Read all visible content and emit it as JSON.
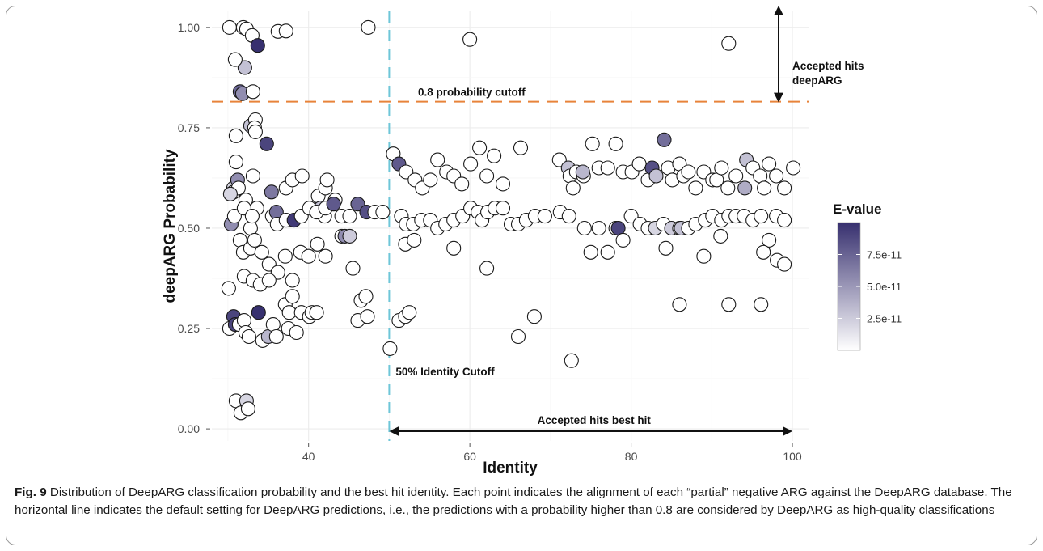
{
  "caption": {
    "label": "Fig. 9",
    "text": " Distribution of DeepARG classification probability and the best hit identity. Each point indicates the alignment of each “partial” negative ARG against the DeepARG database. The horizontal line indicates the default setting for DeepARG predictions, i.e., the predictions with a probability higher than 0.8 are considered by DeepARG as high-quality classifications"
  },
  "chart_data": {
    "type": "scatter",
    "xlabel": "Identity",
    "ylabel": "deepARG Probability",
    "xlim": [
      28,
      102
    ],
    "ylim": [
      -0.03,
      1.04
    ],
    "x_ticks": [
      40,
      60,
      80,
      100
    ],
    "y_ticks": [
      0.0,
      0.25,
      0.5,
      0.75,
      1.0
    ],
    "y_tick_labels": [
      "0.00",
      "0.25",
      "0.50",
      "0.75",
      "1.00"
    ],
    "grid": true,
    "reference_lines": [
      {
        "orientation": "horizontal",
        "value": 0.815,
        "color": "#E8833A",
        "style": "dashed",
        "label": "0.8 probability cutoff"
      },
      {
        "orientation": "vertical",
        "value": 50,
        "color": "#6EC6D8",
        "style": "dashed",
        "label": "50% Identity Cutoff"
      }
    ],
    "annotations": [
      {
        "text_lines": [
          "Accepted hits",
          "deepARG"
        ],
        "arrow": "vertical",
        "arrow_from_y": 0.815,
        "arrow_to_y": 1.04
      },
      {
        "text_lines": [
          "Accepted hits best hit"
        ],
        "arrow": "horizontal",
        "arrow_from_x": 50,
        "arrow_to_x": 100
      }
    ],
    "color_scale": {
      "title": "E-value",
      "low_color": "#ffffff",
      "high_color": "#37306F",
      "min": 0,
      "max": 1e-10,
      "ticks": [
        2.5e-11,
        5e-11,
        7.5e-11
      ],
      "tick_labels": [
        "2.5e-11",
        "5.0e-11",
        "7.5e-11"
      ]
    },
    "points": [
      [
        30.2,
        1.0,
        0
      ],
      [
        31.9,
        1.0,
        0
      ],
      [
        32.3,
        0.996,
        0
      ],
      [
        33.0,
        0.98,
        0
      ],
      [
        36.2,
        0.99,
        0
      ],
      [
        37.2,
        0.991,
        0
      ],
      [
        47.4,
        1.0,
        0
      ],
      [
        60.0,
        0.97,
        0
      ],
      [
        92.1,
        0.96,
        0
      ],
      [
        33.7,
        0.955,
        1.0
      ],
      [
        32.1,
        0.9,
        0.3
      ],
      [
        30.9,
        0.92,
        0
      ],
      [
        31.5,
        0.84,
        0.75
      ],
      [
        31.8,
        0.835,
        0.55
      ],
      [
        33.1,
        0.84,
        0
      ],
      [
        32.8,
        0.755,
        0.3
      ],
      [
        33.4,
        0.77,
        0
      ],
      [
        33.3,
        0.75,
        0
      ],
      [
        33.4,
        0.74,
        0
      ],
      [
        34.8,
        0.71,
        0.9
      ],
      [
        31.0,
        0.73,
        0
      ],
      [
        30.7,
        0.6,
        0.2
      ],
      [
        31.2,
        0.62,
        0.55
      ],
      [
        30.7,
        0.59,
        0
      ],
      [
        31.0,
        0.665,
        0
      ],
      [
        31.3,
        0.6,
        0
      ],
      [
        30.3,
        0.585,
        0.2
      ],
      [
        32.2,
        0.57,
        0
      ],
      [
        32.8,
        0.5,
        0
      ],
      [
        33.1,
        0.63,
        0
      ],
      [
        33.6,
        0.55,
        0
      ],
      [
        30.4,
        0.51,
        0.55
      ],
      [
        30.8,
        0.53,
        0
      ],
      [
        31.5,
        0.47,
        0
      ],
      [
        31.9,
        0.44,
        0
      ],
      [
        32.8,
        0.45,
        0
      ],
      [
        32.0,
        0.55,
        0
      ],
      [
        33.0,
        0.53,
        0
      ],
      [
        33.3,
        0.47,
        0
      ],
      [
        35.4,
        0.59,
        0.65
      ],
      [
        35.5,
        0.53,
        0
      ],
      [
        36.0,
        0.54,
        0.7
      ],
      [
        37.2,
        0.6,
        0
      ],
      [
        38.0,
        0.62,
        0
      ],
      [
        39.2,
        0.63,
        0
      ],
      [
        41.2,
        0.58,
        0
      ],
      [
        42.1,
        0.6,
        0
      ],
      [
        42.3,
        0.62,
        0
      ],
      [
        43.3,
        0.57,
        0
      ],
      [
        41.5,
        0.55,
        0.3
      ],
      [
        42.0,
        0.53,
        0
      ],
      [
        36.1,
        0.51,
        0
      ],
      [
        37.2,
        0.52,
        0
      ],
      [
        38.2,
        0.52,
        0.95
      ],
      [
        39.1,
        0.53,
        0
      ],
      [
        40.1,
        0.55,
        0
      ],
      [
        41.0,
        0.54,
        0
      ],
      [
        42.1,
        0.55,
        0
      ],
      [
        43.1,
        0.56,
        0.8
      ],
      [
        44.1,
        0.53,
        0
      ],
      [
        45.1,
        0.53,
        0
      ],
      [
        46.1,
        0.56,
        0.75
      ],
      [
        47.2,
        0.54,
        0.85
      ],
      [
        48.2,
        0.54,
        0
      ],
      [
        49.2,
        0.54,
        0
      ],
      [
        34.2,
        0.44,
        0
      ],
      [
        35.1,
        0.41,
        0
      ],
      [
        36.2,
        0.39,
        0
      ],
      [
        37.1,
        0.43,
        0
      ],
      [
        38.0,
        0.37,
        0
      ],
      [
        39.0,
        0.44,
        0
      ],
      [
        40.0,
        0.43,
        0
      ],
      [
        41.1,
        0.46,
        0
      ],
      [
        42.1,
        0.43,
        0
      ],
      [
        44.1,
        0.48,
        0
      ],
      [
        44.5,
        0.48,
        0.55
      ],
      [
        45.1,
        0.48,
        0.25
      ],
      [
        45.5,
        0.4,
        0
      ],
      [
        32.0,
        0.38,
        0
      ],
      [
        33.1,
        0.37,
        0
      ],
      [
        34.0,
        0.36,
        0
      ],
      [
        35.1,
        0.37,
        0
      ],
      [
        37.1,
        0.31,
        0
      ],
      [
        37.6,
        0.29,
        0
      ],
      [
        38.0,
        0.33,
        0
      ],
      [
        39.1,
        0.29,
        0
      ],
      [
        40.1,
        0.28,
        0
      ],
      [
        40.4,
        0.29,
        0
      ],
      [
        41.0,
        0.29,
        0
      ],
      [
        46.1,
        0.27,
        0
      ],
      [
        46.5,
        0.32,
        0
      ],
      [
        47.1,
        0.33,
        0
      ],
      [
        47.3,
        0.28,
        0
      ],
      [
        30.1,
        0.35,
        0
      ],
      [
        30.2,
        0.25,
        0
      ],
      [
        30.7,
        0.28,
        0.9
      ],
      [
        30.9,
        0.26,
        0.9
      ],
      [
        31.4,
        0.26,
        0
      ],
      [
        32.0,
        0.27,
        0
      ],
      [
        32.2,
        0.24,
        0
      ],
      [
        32.6,
        0.23,
        0
      ],
      [
        33.8,
        0.29,
        1.0
      ],
      [
        34.3,
        0.22,
        0
      ],
      [
        35.0,
        0.23,
        0.35
      ],
      [
        35.6,
        0.26,
        0
      ],
      [
        36.0,
        0.23,
        0
      ],
      [
        37.5,
        0.25,
        0
      ],
      [
        38.5,
        0.24,
        0
      ],
      [
        31.0,
        0.07,
        0
      ],
      [
        31.6,
        0.04,
        0
      ],
      [
        32.3,
        0.07,
        0.2
      ],
      [
        32.5,
        0.05,
        0
      ],
      [
        50.1,
        0.2,
        0
      ],
      [
        50.5,
        0.685,
        0
      ],
      [
        51.2,
        0.66,
        0.8
      ],
      [
        52.1,
        0.64,
        0
      ],
      [
        53.2,
        0.62,
        0
      ],
      [
        54.1,
        0.6,
        0
      ],
      [
        55.1,
        0.62,
        0
      ],
      [
        56.0,
        0.67,
        0
      ],
      [
        57.1,
        0.64,
        0
      ],
      [
        58.0,
        0.63,
        0
      ],
      [
        59.0,
        0.61,
        0
      ],
      [
        60.1,
        0.66,
        0
      ],
      [
        61.2,
        0.7,
        0
      ],
      [
        62.1,
        0.63,
        0
      ],
      [
        63.0,
        0.68,
        0
      ],
      [
        64.1,
        0.61,
        0
      ],
      [
        66.3,
        0.7,
        0
      ],
      [
        51.5,
        0.53,
        0
      ],
      [
        52.1,
        0.51,
        0
      ],
      [
        53.0,
        0.51,
        0
      ],
      [
        54.0,
        0.52,
        0
      ],
      [
        55.1,
        0.52,
        0
      ],
      [
        56.0,
        0.5,
        0
      ],
      [
        57.0,
        0.51,
        0
      ],
      [
        58.0,
        0.52,
        0
      ],
      [
        59.1,
        0.53,
        0
      ],
      [
        60.1,
        0.55,
        0
      ],
      [
        61.0,
        0.54,
        0
      ],
      [
        61.5,
        0.52,
        0
      ],
      [
        62.2,
        0.54,
        0
      ],
      [
        63.1,
        0.55,
        0
      ],
      [
        64.1,
        0.55,
        0
      ],
      [
        65.1,
        0.51,
        0
      ],
      [
        66.0,
        0.51,
        0
      ],
      [
        67.0,
        0.52,
        0
      ],
      [
        68.1,
        0.53,
        0
      ],
      [
        69.3,
        0.53,
        0
      ],
      [
        71.2,
        0.54,
        0
      ],
      [
        72.3,
        0.53,
        0
      ],
      [
        52.0,
        0.46,
        0
      ],
      [
        53.1,
        0.47,
        0
      ],
      [
        58.0,
        0.45,
        0
      ],
      [
        62.1,
        0.4,
        0
      ],
      [
        51.2,
        0.27,
        0
      ],
      [
        52.0,
        0.28,
        0
      ],
      [
        52.5,
        0.29,
        0
      ],
      [
        66.0,
        0.23,
        0
      ],
      [
        68.0,
        0.28,
        0
      ],
      [
        72.6,
        0.17,
        0
      ],
      [
        71.1,
        0.67,
        0
      ],
      [
        72.2,
        0.65,
        0.3
      ],
      [
        72.4,
        0.63,
        0
      ],
      [
        72.8,
        0.6,
        0
      ],
      [
        73.2,
        0.64,
        0
      ],
      [
        74.1,
        0.63,
        0
      ],
      [
        75.2,
        0.71,
        0
      ],
      [
        76.0,
        0.65,
        0
      ],
      [
        77.1,
        0.65,
        0
      ],
      [
        78.1,
        0.71,
        0
      ],
      [
        79.0,
        0.64,
        0
      ],
      [
        80.1,
        0.64,
        0
      ],
      [
        81.0,
        0.66,
        0
      ],
      [
        82.1,
        0.62,
        0
      ],
      [
        82.6,
        0.65,
        0.85
      ],
      [
        83.1,
        0.63,
        0.3
      ],
      [
        84.1,
        0.72,
        0.7
      ],
      [
        84.6,
        0.65,
        0
      ],
      [
        85.1,
        0.62,
        0
      ],
      [
        86.0,
        0.66,
        0
      ],
      [
        86.5,
        0.63,
        0
      ],
      [
        87.1,
        0.64,
        0
      ],
      [
        88.0,
        0.6,
        0
      ],
      [
        89.0,
        0.64,
        0
      ],
      [
        90.1,
        0.62,
        0
      ],
      [
        90.6,
        0.62,
        0
      ],
      [
        91.2,
        0.65,
        0
      ],
      [
        92.0,
        0.6,
        0
      ],
      [
        93.0,
        0.63,
        0
      ],
      [
        94.1,
        0.6,
        0.4
      ],
      [
        94.3,
        0.67,
        0.3
      ],
      [
        95.1,
        0.65,
        0
      ],
      [
        96.0,
        0.63,
        0
      ],
      [
        96.5,
        0.6,
        0
      ],
      [
        97.1,
        0.66,
        0
      ],
      [
        98.0,
        0.63,
        0
      ],
      [
        99.0,
        0.6,
        0
      ],
      [
        100.1,
        0.65,
        0
      ],
      [
        74.0,
        0.64,
        0.35
      ],
      [
        74.2,
        0.5,
        0
      ],
      [
        75.0,
        0.44,
        0
      ],
      [
        76.0,
        0.5,
        0
      ],
      [
        77.1,
        0.44,
        0
      ],
      [
        78.1,
        0.5,
        0
      ],
      [
        78.4,
        0.5,
        0.9
      ],
      [
        79.0,
        0.47,
        0
      ],
      [
        80.0,
        0.53,
        0
      ],
      [
        81.1,
        0.51,
        0
      ],
      [
        82.1,
        0.5,
        0
      ],
      [
        83.0,
        0.5,
        0.2
      ],
      [
        84.0,
        0.51,
        0
      ],
      [
        84.3,
        0.45,
        0
      ],
      [
        85.0,
        0.5,
        0.25
      ],
      [
        86.0,
        0.5,
        0
      ],
      [
        86.2,
        0.5,
        0.3
      ],
      [
        87.1,
        0.5,
        0
      ],
      [
        88.0,
        0.51,
        0
      ],
      [
        89.2,
        0.52,
        0
      ],
      [
        90.1,
        0.53,
        0
      ],
      [
        91.2,
        0.52,
        0
      ],
      [
        92.1,
        0.53,
        0
      ],
      [
        93.0,
        0.53,
        0
      ],
      [
        94.0,
        0.53,
        0
      ],
      [
        95.1,
        0.52,
        0
      ],
      [
        96.1,
        0.53,
        0
      ],
      [
        97.1,
        0.47,
        0
      ],
      [
        98.0,
        0.53,
        0
      ],
      [
        99.0,
        0.52,
        0
      ],
      [
        86.0,
        0.31,
        0
      ],
      [
        89.0,
        0.43,
        0
      ],
      [
        92.1,
        0.31,
        0
      ],
      [
        96.1,
        0.31,
        0
      ],
      [
        96.4,
        0.44,
        0
      ],
      [
        98.1,
        0.42,
        0
      ],
      [
        99.0,
        0.41,
        0
      ],
      [
        91.1,
        0.48,
        0
      ]
    ]
  }
}
